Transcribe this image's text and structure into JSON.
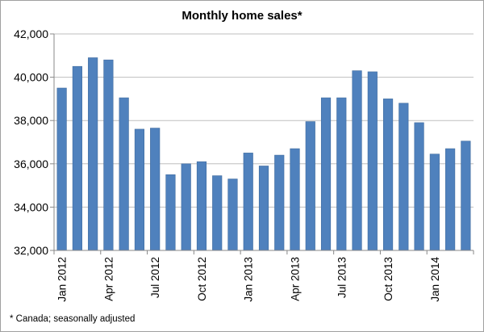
{
  "chart_data": {
    "type": "bar",
    "title": "Monthly home sales*",
    "xlabel": "",
    "ylabel": "",
    "ylim": [
      32000,
      42000
    ],
    "yticks": [
      "32,000",
      "34,000",
      "36,000",
      "38,000",
      "40,000",
      "42,000"
    ],
    "ytick_values": [
      32000,
      34000,
      36000,
      38000,
      40000,
      42000
    ],
    "grid": "horizontal",
    "bar_color": "#4f81bd",
    "categories": [
      "Jan 2012",
      "Feb 2012",
      "Mar 2012",
      "Apr 2012",
      "May 2012",
      "Jun 2012",
      "Jul 2012",
      "Aug 2012",
      "Sep 2012",
      "Oct 2012",
      "Nov 2012",
      "Dec 2012",
      "Jan 2013",
      "Feb 2013",
      "Mar 2013",
      "Apr 2013",
      "May 2013",
      "Jun 2013",
      "Jul 2013",
      "Aug 2013",
      "Sep 2013",
      "Oct 2013",
      "Nov 2013",
      "Dec 2013",
      "Jan 2014",
      "Feb 2014",
      "Mar 2014"
    ],
    "values": [
      39500,
      40500,
      40900,
      40800,
      39050,
      37600,
      37650,
      35500,
      36000,
      36100,
      35450,
      35300,
      36500,
      35900,
      36400,
      36700,
      37950,
      39050,
      39050,
      40300,
      40250,
      39000,
      38800,
      37900,
      36450,
      36700,
      37050
    ],
    "xtick_labels": [
      {
        "index": 0,
        "label": "Jan 2012"
      },
      {
        "index": 3,
        "label": "Apr 2012"
      },
      {
        "index": 6,
        "label": "Jul 2012"
      },
      {
        "index": 9,
        "label": "Oct 2012"
      },
      {
        "index": 12,
        "label": "Jan 2013"
      },
      {
        "index": 15,
        "label": "Apr 2013"
      },
      {
        "index": 18,
        "label": "Jul 2013"
      },
      {
        "index": 21,
        "label": "Oct 2013"
      },
      {
        "index": 24,
        "label": "Jan 2014"
      }
    ],
    "footnote": "* Canada; seasonally adjusted"
  }
}
